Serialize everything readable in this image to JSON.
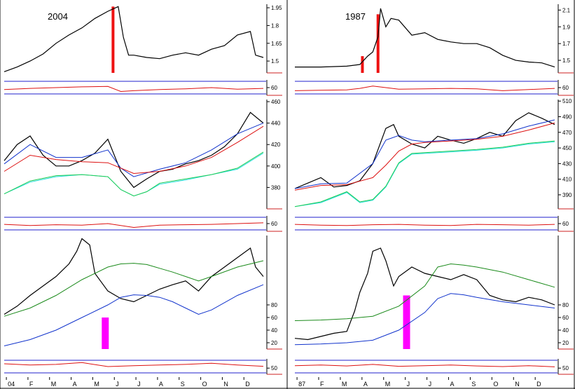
{
  "colors": {
    "price": "#000000",
    "red_line": "#dd1111",
    "blue_line": "#1133cc",
    "cyan_line": "#22dddd",
    "green_line": "#22cc55",
    "dark_green_line": "#1a8a1a",
    "marker_red": "#ee1111",
    "marker_magenta": "#ff00ff",
    "divider": "#cc2222",
    "guide_blue": "#2222cc"
  },
  "chart_data": [
    {
      "type": "line",
      "title": "2004",
      "panel": "left-top",
      "ylim": [
        1.4,
        1.98
      ],
      "yticks": [
        "1.95",
        "1.8",
        "1.65",
        "1.5"
      ],
      "ytick_values": [
        1.95,
        1.8,
        1.65,
        1.5
      ],
      "series": [
        {
          "role": "price",
          "x": [
            0,
            5,
            10,
            15,
            20,
            25,
            30,
            35,
            40,
            44,
            46,
            48,
            50,
            55,
            60,
            65,
            70,
            75,
            80,
            85,
            90,
            95,
            97,
            100
          ],
          "values": [
            1.41,
            1.45,
            1.5,
            1.56,
            1.65,
            1.72,
            1.78,
            1.86,
            1.92,
            1.96,
            1.7,
            1.55,
            1.55,
            1.53,
            1.52,
            1.55,
            1.57,
            1.55,
            1.6,
            1.63,
            1.72,
            1.75,
            1.55,
            1.53
          ]
        }
      ],
      "bars": [
        {
          "x": 42,
          "value": 1.96,
          "color_key": "marker_red"
        }
      ]
    },
    {
      "type": "line",
      "title": "1987",
      "panel": "right-top",
      "ylim": [
        1.35,
        2.17
      ],
      "yticks": [
        "2.1",
        "1.9",
        "1.7",
        "1.5"
      ],
      "ytick_values": [
        2.1,
        1.9,
        1.7,
        1.5
      ],
      "series": [
        {
          "role": "price",
          "x": [
            0,
            10,
            20,
            25,
            28,
            30,
            32,
            33,
            35,
            37,
            40,
            45,
            50,
            55,
            60,
            65,
            70,
            75,
            80,
            85,
            90,
            95,
            100
          ],
          "values": [
            1.42,
            1.42,
            1.43,
            1.45,
            1.55,
            1.6,
            1.78,
            2.12,
            1.9,
            2.0,
            1.98,
            1.8,
            1.83,
            1.75,
            1.72,
            1.7,
            1.7,
            1.65,
            1.56,
            1.5,
            1.48,
            1.47,
            1.42
          ]
        }
      ],
      "bars": [
        {
          "x": 26,
          "value": 1.55,
          "color_key": "marker_red"
        },
        {
          "x": 32,
          "value": 2.05,
          "color_key": "marker_red"
        }
      ]
    },
    {
      "type": "line",
      "panel": "left-upper-oscillator",
      "ylim": [
        40,
        80
      ],
      "yticks": [
        "60"
      ],
      "ytick_values": [
        60
      ],
      "series": [
        {
          "role": "oscillator",
          "x": [
            0,
            10,
            20,
            30,
            40,
            45,
            50,
            60,
            70,
            80,
            90,
            100
          ],
          "values": [
            55,
            58,
            60,
            62,
            63,
            50,
            52,
            55,
            57,
            60,
            56,
            58
          ]
        }
      ]
    },
    {
      "type": "line",
      "panel": "right-upper-oscillator",
      "ylim": [
        40,
        80
      ],
      "yticks": [
        "60"
      ],
      "ytick_values": [
        60
      ],
      "series": [
        {
          "role": "oscillator",
          "x": [
            0,
            10,
            20,
            25,
            30,
            35,
            40,
            50,
            60,
            70,
            80,
            90,
            100
          ],
          "values": [
            52,
            53,
            54,
            58,
            64,
            60,
            56,
            57,
            58,
            57,
            52,
            55,
            58
          ]
        }
      ]
    },
    {
      "type": "line",
      "panel": "left-middle",
      "ylim": [
        360,
        462
      ],
      "yticks": [
        "460",
        "440",
        "420",
        "400",
        "380"
      ],
      "ytick_values": [
        460,
        440,
        420,
        400,
        380
      ],
      "series": [
        {
          "role": "price",
          "x": [
            0,
            5,
            10,
            15,
            20,
            25,
            30,
            35,
            40,
            45,
            50,
            55,
            60,
            65,
            70,
            75,
            80,
            85,
            90,
            95,
            100
          ],
          "values": [
            405,
            420,
            428,
            410,
            400,
            400,
            405,
            412,
            425,
            395,
            380,
            388,
            395,
            397,
            402,
            405,
            410,
            418,
            430,
            450,
            440
          ]
        },
        {
          "role": "blue",
          "x": [
            0,
            10,
            20,
            30,
            40,
            45,
            50,
            60,
            70,
            80,
            90,
            100
          ],
          "values": [
            402,
            420,
            408,
            408,
            415,
            398,
            390,
            397,
            403,
            415,
            430,
            440
          ]
        },
        {
          "role": "red",
          "x": [
            0,
            10,
            20,
            30,
            40,
            50,
            60,
            70,
            80,
            90,
            100
          ],
          "values": [
            395,
            410,
            406,
            404,
            403,
            393,
            395,
            400,
            408,
            422,
            437
          ]
        },
        {
          "role": "cyan",
          "x": [
            0,
            10,
            20,
            30,
            35,
            40,
            45,
            50,
            55,
            60,
            70,
            80,
            90,
            100
          ],
          "values": [
            374,
            385,
            390,
            392,
            391,
            390,
            378,
            372,
            376,
            383,
            387,
            392,
            397,
            412
          ]
        },
        {
          "role": "green",
          "x": [
            0,
            10,
            20,
            30,
            35,
            40,
            45,
            50,
            55,
            60,
            70,
            80,
            90,
            100
          ],
          "values": [
            374,
            386,
            391,
            392,
            391,
            390,
            378,
            372,
            376,
            384,
            388,
            392,
            398,
            413
          ]
        }
      ]
    },
    {
      "type": "line",
      "panel": "right-middle",
      "ylim": [
        372,
        512
      ],
      "yticks": [
        "510",
        "490",
        "470",
        "450",
        "430",
        "410",
        "390"
      ],
      "ytick_values": [
        510,
        490,
        470,
        450,
        430,
        410,
        390
      ],
      "series": [
        {
          "role": "price",
          "x": [
            0,
            5,
            10,
            15,
            20,
            25,
            30,
            35,
            38,
            40,
            45,
            50,
            55,
            60,
            65,
            70,
            75,
            80,
            85,
            90,
            95,
            100
          ],
          "values": [
            398,
            405,
            412,
            400,
            402,
            408,
            430,
            475,
            480,
            465,
            455,
            450,
            465,
            460,
            456,
            462,
            470,
            465,
            485,
            495,
            488,
            480
          ]
        },
        {
          "role": "blue",
          "x": [
            0,
            10,
            20,
            30,
            35,
            40,
            45,
            50,
            60,
            70,
            80,
            90,
            100
          ],
          "values": [
            398,
            404,
            405,
            430,
            460,
            466,
            460,
            458,
            460,
            462,
            468,
            478,
            486
          ]
        },
        {
          "role": "red",
          "x": [
            0,
            10,
            20,
            30,
            35,
            40,
            45,
            50,
            60,
            70,
            80,
            90,
            100
          ],
          "values": [
            396,
            402,
            403,
            412,
            428,
            446,
            455,
            457,
            459,
            461,
            465,
            473,
            482
          ]
        },
        {
          "role": "cyan",
          "x": [
            0,
            10,
            20,
            25,
            30,
            35,
            40,
            45,
            50,
            60,
            70,
            80,
            90,
            100
          ],
          "values": [
            375,
            380,
            393,
            380,
            383,
            400,
            430,
            442,
            443,
            445,
            447,
            450,
            455,
            458
          ]
        },
        {
          "role": "green",
          "x": [
            0,
            10,
            20,
            25,
            30,
            35,
            40,
            45,
            50,
            60,
            70,
            80,
            90,
            100
          ],
          "values": [
            375,
            381,
            394,
            381,
            384,
            401,
            431,
            443,
            444,
            446,
            448,
            451,
            456,
            459
          ]
        }
      ]
    },
    {
      "type": "line",
      "panel": "left-middle-oscillator",
      "ylim": [
        40,
        80
      ],
      "yticks": [
        "60"
      ],
      "ytick_values": [
        60
      ],
      "series": [
        {
          "role": "oscillator",
          "x": [
            0,
            10,
            20,
            30,
            40,
            50,
            60,
            70,
            80,
            90,
            100
          ],
          "values": [
            58,
            55,
            57,
            56,
            60,
            50,
            56,
            57,
            58,
            60,
            62
          ]
        }
      ]
    },
    {
      "type": "line",
      "panel": "right-middle-oscillator",
      "ylim": [
        40,
        80
      ],
      "yticks": [
        "60"
      ],
      "ytick_values": [
        60
      ],
      "series": [
        {
          "role": "oscillator",
          "x": [
            0,
            10,
            20,
            30,
            40,
            50,
            60,
            70,
            80,
            90,
            100
          ],
          "values": [
            58,
            56,
            55,
            57,
            58,
            56,
            55,
            58,
            57,
            56,
            58
          ]
        }
      ]
    },
    {
      "type": "line",
      "panel": "left-bottom",
      "ylim": [
        10,
        190
      ],
      "yticks": [
        "80",
        "60",
        "40",
        "20"
      ],
      "ytick_values": [
        80,
        60,
        40,
        20
      ],
      "series": [
        {
          "role": "price",
          "x": [
            0,
            5,
            10,
            15,
            20,
            25,
            28,
            30,
            33,
            35,
            40,
            45,
            50,
            55,
            60,
            65,
            70,
            75,
            80,
            85,
            90,
            95,
            97,
            100
          ],
          "values": [
            65,
            78,
            95,
            110,
            125,
            145,
            165,
            185,
            175,
            130,
            102,
            90,
            85,
            95,
            105,
            112,
            118,
            102,
            125,
            140,
            155,
            170,
            140,
            125
          ]
        },
        {
          "role": "dark_green",
          "x": [
            0,
            10,
            20,
            30,
            40,
            45,
            50,
            55,
            60,
            65,
            70,
            75,
            80,
            90,
            100
          ],
          "values": [
            62,
            75,
            95,
            120,
            140,
            145,
            146,
            144,
            138,
            132,
            125,
            118,
            125,
            140,
            150
          ]
        },
        {
          "role": "blue",
          "x": [
            0,
            10,
            20,
            30,
            40,
            45,
            50,
            55,
            60,
            65,
            70,
            75,
            80,
            90,
            100
          ],
          "values": [
            15,
            25,
            40,
            60,
            80,
            92,
            96,
            95,
            92,
            85,
            75,
            65,
            72,
            95,
            112
          ]
        }
      ],
      "bars": [
        {
          "x": 39,
          "value": 60,
          "color_key": "marker_magenta"
        }
      ]
    },
    {
      "type": "line",
      "panel": "right-bottom",
      "ylim": [
        10,
        190
      ],
      "yticks": [
        "80",
        "60",
        "40",
        "20"
      ],
      "ytick_values": [
        80,
        60,
        40,
        20
      ],
      "series": [
        {
          "role": "price",
          "x": [
            0,
            5,
            10,
            15,
            20,
            23,
            25,
            28,
            30,
            33,
            35,
            38,
            40,
            45,
            50,
            55,
            60,
            65,
            70,
            75,
            80,
            85,
            90,
            95,
            100
          ],
          "values": [
            27,
            25,
            30,
            35,
            38,
            70,
            100,
            130,
            165,
            170,
            150,
            110,
            125,
            140,
            130,
            125,
            120,
            128,
            120,
            95,
            88,
            85,
            92,
            88,
            80
          ]
        },
        {
          "role": "dark_green",
          "x": [
            0,
            10,
            20,
            30,
            40,
            50,
            55,
            60,
            65,
            70,
            80,
            90,
            100
          ],
          "values": [
            55,
            56,
            58,
            62,
            78,
            110,
            140,
            145,
            143,
            140,
            132,
            120,
            108
          ]
        },
        {
          "role": "blue",
          "x": [
            0,
            10,
            20,
            30,
            40,
            50,
            55,
            60,
            65,
            70,
            80,
            90,
            100
          ],
          "values": [
            17,
            18,
            20,
            24,
            40,
            68,
            90,
            98,
            96,
            92,
            85,
            80,
            75
          ]
        }
      ],
      "bars": [
        {
          "x": 43,
          "value": 95,
          "color_key": "marker_magenta"
        }
      ]
    },
    {
      "type": "line",
      "panel": "left-bottom-oscillator",
      "ylim": [
        30,
        80
      ],
      "yticks": [
        "50"
      ],
      "ytick_values": [
        50
      ],
      "xticks": [
        "04",
        "F",
        "M",
        "A",
        "M",
        "J",
        "J",
        "A",
        "S",
        "O",
        "N",
        "D"
      ],
      "series": [
        {
          "role": "oscillator",
          "x": [
            0,
            10,
            20,
            30,
            40,
            50,
            60,
            70,
            80,
            90,
            100
          ],
          "values": [
            64,
            60,
            62,
            68,
            55,
            58,
            60,
            62,
            66,
            60,
            56
          ]
        }
      ]
    },
    {
      "type": "line",
      "panel": "right-bottom-oscillator",
      "ylim": [
        30,
        80
      ],
      "yticks": [
        "50"
      ],
      "ytick_values": [
        50
      ],
      "xticks": [
        "87",
        "F",
        "M",
        "A",
        "M",
        "J",
        "J",
        "A",
        "S",
        "O",
        "N",
        "D"
      ],
      "series": [
        {
          "role": "oscillator",
          "x": [
            0,
            10,
            20,
            30,
            40,
            50,
            60,
            70,
            80,
            90,
            100
          ],
          "values": [
            58,
            60,
            57,
            62,
            56,
            58,
            60,
            57,
            55,
            58,
            54
          ]
        }
      ]
    }
  ]
}
